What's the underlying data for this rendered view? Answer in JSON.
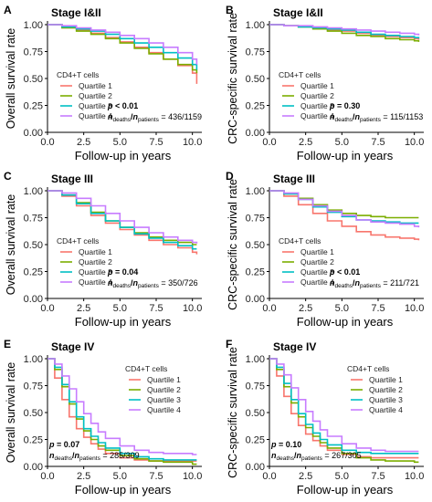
{
  "figure": {
    "legend_title": "CD4+T cells",
    "quartile_labels": [
      "Quartile 1",
      "Quartile 2",
      "Quartile 3",
      "Quartile 4"
    ],
    "colors": [
      "#f8766d",
      "#7cae00",
      "#00bfc4",
      "#c77cff"
    ],
    "x_label": "Follow-up in years",
    "y_label_os": "Overall survival rate",
    "y_label_crc": "CRC-specific survival rate",
    "x_ticks": [
      "0.0",
      "2.5",
      "5.0",
      "7.5",
      "10.0"
    ],
    "y_ticks": [
      "0.00",
      "0.25",
      "0.50",
      "0.75",
      "1.00"
    ]
  },
  "chart_data": [
    {
      "type": "line",
      "panel_letter": "A",
      "stage_title": "Stage I&II",
      "ylabel": "Overall survival rate",
      "xlabel": "Follow-up in years",
      "xlim": [
        0,
        10.4
      ],
      "ylim": [
        0,
        1
      ],
      "legend_position": "bottom-left",
      "p_value": "p < 0.01",
      "counts": "436/1159",
      "series": [
        {
          "name": "Quartile 1",
          "x": [
            0,
            1,
            2,
            3,
            4,
            5,
            6,
            7,
            8,
            9,
            10,
            10.3
          ],
          "y": [
            1.0,
            0.97,
            0.95,
            0.92,
            0.88,
            0.84,
            0.79,
            0.74,
            0.68,
            0.62,
            0.55,
            0.45
          ]
        },
        {
          "name": "Quartile 2",
          "x": [
            0,
            1,
            2,
            3,
            4,
            5,
            6,
            7,
            8,
            9,
            10,
            10.3
          ],
          "y": [
            1.0,
            0.97,
            0.94,
            0.91,
            0.87,
            0.83,
            0.78,
            0.73,
            0.68,
            0.63,
            0.58,
            0.55
          ]
        },
        {
          "name": "Quartile 3",
          "x": [
            0,
            1,
            2,
            3,
            4,
            5,
            6,
            7,
            8,
            9,
            10,
            10.3
          ],
          "y": [
            1.0,
            0.98,
            0.96,
            0.94,
            0.91,
            0.87,
            0.83,
            0.79,
            0.74,
            0.69,
            0.63,
            0.58
          ]
        },
        {
          "name": "Quartile 4",
          "x": [
            0,
            1,
            2,
            3,
            4,
            5,
            6,
            7,
            8,
            9,
            10,
            10.3
          ],
          "y": [
            1.0,
            0.99,
            0.97,
            0.95,
            0.93,
            0.9,
            0.87,
            0.83,
            0.79,
            0.74,
            0.68,
            0.63
          ]
        }
      ]
    },
    {
      "type": "line",
      "panel_letter": "B",
      "stage_title": "Stage I&II",
      "ylabel": "CRC-specific survival rate",
      "xlabel": "Follow-up in years",
      "xlim": [
        0,
        10.4
      ],
      "ylim": [
        0,
        1
      ],
      "legend_position": "bottom-left",
      "p_value": "p = 0.30",
      "counts": "115/1153",
      "series": [
        {
          "name": "Quartile 1",
          "x": [
            0,
            1,
            2,
            3,
            4,
            5,
            6,
            7,
            8,
            9,
            10,
            10.3
          ],
          "y": [
            1.0,
            0.99,
            0.98,
            0.97,
            0.95,
            0.94,
            0.92,
            0.9,
            0.89,
            0.88,
            0.87,
            0.86
          ]
        },
        {
          "name": "Quartile 2",
          "x": [
            0,
            1,
            2,
            3,
            4,
            5,
            6,
            7,
            8,
            9,
            10,
            10.3
          ],
          "y": [
            1.0,
            0.99,
            0.98,
            0.96,
            0.94,
            0.92,
            0.9,
            0.89,
            0.87,
            0.86,
            0.85,
            0.84
          ]
        },
        {
          "name": "Quartile 3",
          "x": [
            0,
            1,
            2,
            3,
            4,
            5,
            6,
            7,
            8,
            9,
            10,
            10.3
          ],
          "y": [
            1.0,
            0.99,
            0.98,
            0.97,
            0.96,
            0.95,
            0.93,
            0.91,
            0.9,
            0.89,
            0.88,
            0.87
          ]
        },
        {
          "name": "Quartile 4",
          "x": [
            0,
            1,
            2,
            3,
            4,
            5,
            6,
            7,
            8,
            9,
            10,
            10.3
          ],
          "y": [
            1.0,
            0.99,
            0.99,
            0.98,
            0.97,
            0.96,
            0.95,
            0.94,
            0.93,
            0.92,
            0.91,
            0.9
          ]
        }
      ]
    },
    {
      "type": "line",
      "panel_letter": "C",
      "stage_title": "Stage III",
      "ylabel": "Overall survival rate",
      "xlabel": "Follow-up in years",
      "xlim": [
        0,
        10.4
      ],
      "ylim": [
        0,
        1
      ],
      "legend_position": "bottom-left",
      "p_value": "p = 0.04",
      "counts": "350/726",
      "series": [
        {
          "name": "Quartile 1",
          "x": [
            0,
            1,
            2,
            3,
            4,
            5,
            6,
            7,
            8,
            9,
            10,
            10.3
          ],
          "y": [
            1.0,
            0.95,
            0.86,
            0.77,
            0.7,
            0.64,
            0.59,
            0.54,
            0.5,
            0.47,
            0.43,
            0.41
          ]
        },
        {
          "name": "Quartile 2",
          "x": [
            0,
            1,
            2,
            3,
            4,
            5,
            6,
            7,
            8,
            9,
            10,
            10.3
          ],
          "y": [
            1.0,
            0.96,
            0.89,
            0.8,
            0.72,
            0.66,
            0.61,
            0.57,
            0.54,
            0.52,
            0.5,
            0.5
          ]
        },
        {
          "name": "Quartile 3",
          "x": [
            0,
            1,
            2,
            3,
            4,
            5,
            6,
            7,
            8,
            9,
            10,
            10.3
          ],
          "y": [
            1.0,
            0.96,
            0.88,
            0.79,
            0.72,
            0.66,
            0.6,
            0.56,
            0.52,
            0.49,
            0.46,
            0.46
          ]
        },
        {
          "name": "Quartile 4",
          "x": [
            0,
            1,
            2,
            3,
            4,
            5,
            6,
            7,
            8,
            9,
            10,
            10.3
          ],
          "y": [
            1.0,
            0.98,
            0.93,
            0.86,
            0.79,
            0.72,
            0.66,
            0.61,
            0.57,
            0.54,
            0.52,
            0.51
          ]
        }
      ]
    },
    {
      "type": "line",
      "panel_letter": "D",
      "stage_title": "Stage III",
      "ylabel": "CRC-specific survival rate",
      "xlabel": "Follow-up in years",
      "xlim": [
        0,
        10.4
      ],
      "ylim": [
        0,
        1
      ],
      "legend_position": "bottom-left",
      "p_value": "p < 0.01",
      "counts": "211/721",
      "series": [
        {
          "name": "Quartile 1",
          "x": [
            0,
            1,
            2,
            3,
            4,
            5,
            6,
            7,
            8,
            9,
            10,
            10.3
          ],
          "y": [
            1.0,
            0.95,
            0.87,
            0.79,
            0.72,
            0.67,
            0.62,
            0.59,
            0.57,
            0.56,
            0.55,
            0.54
          ]
        },
        {
          "name": "Quartile 2",
          "x": [
            0,
            1,
            2,
            3,
            4,
            5,
            6,
            7,
            8,
            9,
            10,
            10.3
          ],
          "y": [
            1.0,
            0.97,
            0.93,
            0.87,
            0.82,
            0.79,
            0.77,
            0.76,
            0.75,
            0.75,
            0.75,
            0.75
          ]
        },
        {
          "name": "Quartile 3",
          "x": [
            0,
            1,
            2,
            3,
            4,
            5,
            6,
            7,
            8,
            9,
            10,
            10.3
          ],
          "y": [
            1.0,
            0.97,
            0.92,
            0.85,
            0.8,
            0.76,
            0.73,
            0.72,
            0.71,
            0.7,
            0.7,
            0.7
          ]
        },
        {
          "name": "Quartile 4",
          "x": [
            0,
            1,
            2,
            3,
            4,
            5,
            6,
            7,
            8,
            9,
            10,
            10.3
          ],
          "y": [
            1.0,
            0.98,
            0.92,
            0.86,
            0.81,
            0.77,
            0.73,
            0.71,
            0.7,
            0.69,
            0.67,
            0.66
          ]
        }
      ]
    },
    {
      "type": "line",
      "panel_letter": "E",
      "stage_title": "Stage IV",
      "ylabel": "Overall survival rate",
      "xlabel": "Follow-up in years",
      "xlim": [
        0,
        10.4
      ],
      "ylim": [
        0,
        1
      ],
      "legend_position": "top-right",
      "p_value": "p = 0.07",
      "counts": "285/309",
      "series": [
        {
          "name": "Quartile 1",
          "x": [
            0,
            0.5,
            1,
            1.5,
            2,
            2.5,
            3,
            3.5,
            4,
            5,
            6,
            7,
            8,
            9,
            10,
            10.3
          ],
          "y": [
            1.0,
            0.82,
            0.62,
            0.46,
            0.35,
            0.27,
            0.21,
            0.16,
            0.12,
            0.08,
            0.06,
            0.05,
            0.05,
            0.05,
            0.05,
            0.05
          ]
        },
        {
          "name": "Quartile 2",
          "x": [
            0,
            0.5,
            1,
            1.5,
            2,
            2.5,
            3,
            3.5,
            4,
            5,
            6,
            7,
            8,
            9,
            10,
            10.3
          ],
          "y": [
            1.0,
            0.9,
            0.74,
            0.58,
            0.44,
            0.33,
            0.25,
            0.19,
            0.15,
            0.1,
            0.07,
            0.05,
            0.04,
            0.04,
            0.02,
            0.02
          ]
        },
        {
          "name": "Quartile 3",
          "x": [
            0,
            0.5,
            1,
            1.5,
            2,
            2.5,
            3,
            3.5,
            4,
            5,
            6,
            7,
            8,
            9,
            10,
            10.3
          ],
          "y": [
            1.0,
            0.92,
            0.76,
            0.6,
            0.46,
            0.35,
            0.28,
            0.22,
            0.17,
            0.12,
            0.09,
            0.07,
            0.06,
            0.06,
            0.06,
            0.06
          ]
        },
        {
          "name": "Quartile 4",
          "x": [
            0,
            0.5,
            1,
            1.5,
            2,
            2.5,
            3,
            3.5,
            4,
            5,
            6,
            7,
            8,
            9,
            10,
            10.3
          ],
          "y": [
            1.0,
            0.95,
            0.84,
            0.72,
            0.6,
            0.49,
            0.4,
            0.32,
            0.26,
            0.19,
            0.15,
            0.13,
            0.12,
            0.12,
            0.11,
            0.11
          ]
        }
      ]
    },
    {
      "type": "line",
      "panel_letter": "F",
      "stage_title": "Stage IV",
      "ylabel": "CRC-specific survival rate",
      "xlabel": "Follow-up in years",
      "xlim": [
        0,
        10.4
      ],
      "ylim": [
        0,
        1
      ],
      "legend_position": "top-right",
      "p_value": "p = 0.10",
      "counts": "267/305",
      "series": [
        {
          "name": "Quartile 1",
          "x": [
            0,
            0.5,
            1,
            1.5,
            2,
            2.5,
            3,
            3.5,
            4,
            5,
            6,
            7,
            8,
            9,
            10,
            10.3
          ],
          "y": [
            1.0,
            0.84,
            0.65,
            0.49,
            0.38,
            0.3,
            0.24,
            0.19,
            0.15,
            0.11,
            0.09,
            0.08,
            0.08,
            0.08,
            0.08,
            0.08
          ]
        },
        {
          "name": "Quartile 2",
          "x": [
            0,
            0.5,
            1,
            1.5,
            2,
            2.5,
            3,
            3.5,
            4,
            5,
            6,
            7,
            8,
            9,
            10,
            10.3
          ],
          "y": [
            1.0,
            0.9,
            0.74,
            0.59,
            0.46,
            0.36,
            0.28,
            0.22,
            0.17,
            0.12,
            0.08,
            0.06,
            0.05,
            0.05,
            0.04,
            0.04
          ]
        },
        {
          "name": "Quartile 3",
          "x": [
            0,
            0.5,
            1,
            1.5,
            2,
            2.5,
            3,
            3.5,
            4,
            5,
            6,
            7,
            8,
            9,
            10,
            10.3
          ],
          "y": [
            1.0,
            0.92,
            0.77,
            0.62,
            0.49,
            0.39,
            0.31,
            0.25,
            0.2,
            0.15,
            0.13,
            0.12,
            0.12,
            0.12,
            0.12,
            0.12
          ]
        },
        {
          "name": "Quartile 4",
          "x": [
            0,
            0.5,
            1,
            1.5,
            2,
            2.5,
            3,
            3.5,
            4,
            5,
            6,
            7,
            8,
            9,
            10,
            10.3
          ],
          "y": [
            1.0,
            0.95,
            0.85,
            0.73,
            0.62,
            0.51,
            0.42,
            0.34,
            0.28,
            0.21,
            0.17,
            0.15,
            0.14,
            0.14,
            0.14,
            0.14
          ]
        }
      ]
    }
  ]
}
